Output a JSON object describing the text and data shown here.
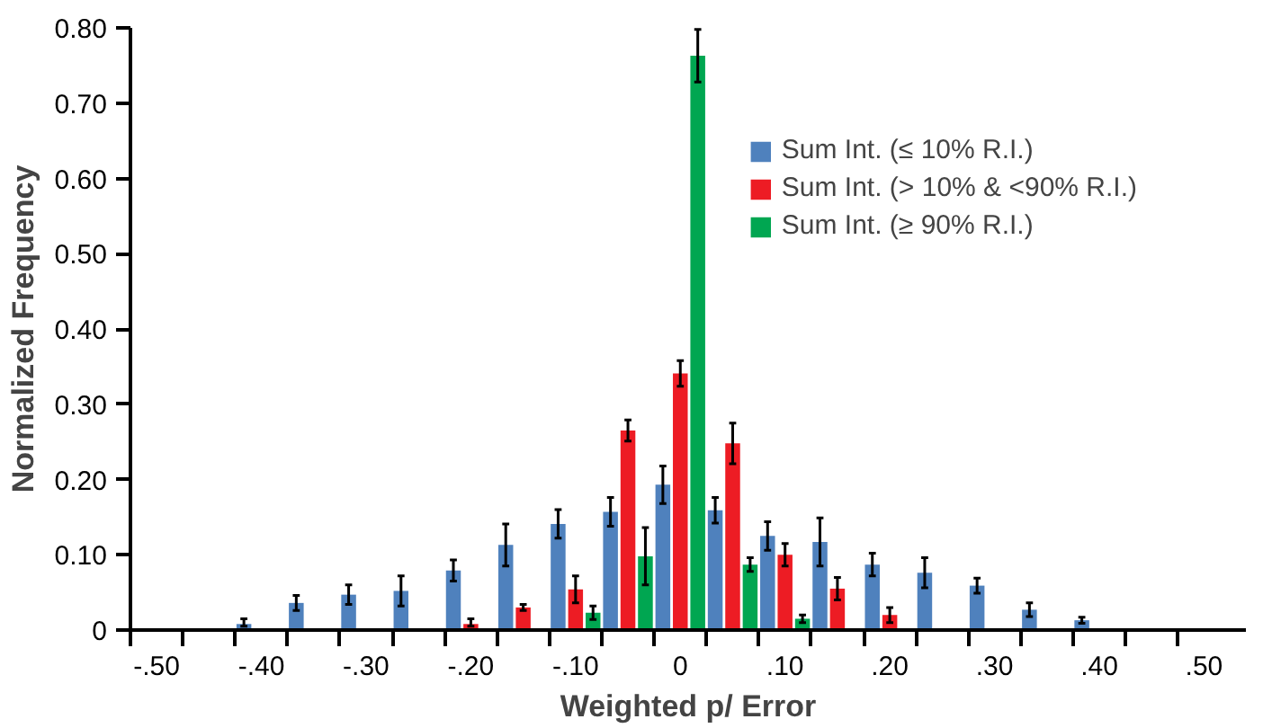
{
  "chart_data": {
    "type": "bar",
    "xlabel": "Weighted p/ Error",
    "ylabel": "Normalized Frequency",
    "xlim": [
      -0.525,
      0.54
    ],
    "ylim": [
      0,
      0.8
    ],
    "xticks": [
      {
        "value": -0.5,
        "label": "-.50"
      },
      {
        "value": -0.4,
        "label": "-.40"
      },
      {
        "value": -0.3,
        "label": "-.30"
      },
      {
        "value": -0.2,
        "label": "-.20"
      },
      {
        "value": -0.1,
        "label": "-.10"
      },
      0,
      {
        "value": 0.1,
        "label": ".10"
      },
      {
        "value": 0.2,
        "label": ".20"
      },
      {
        "value": 0.3,
        "label": ".30"
      },
      {
        "value": 0.4,
        "label": ".40"
      },
      {
        "value": 0.5,
        "label": ".50"
      },
      {
        "value": -0.525,
        "label": null
      },
      {
        "value": -0.475,
        "label": null
      },
      {
        "value": -0.425,
        "label": null
      },
      {
        "value": -0.375,
        "label": null
      },
      {
        "value": -0.325,
        "label": null
      },
      {
        "value": -0.275,
        "label": null
      },
      {
        "value": -0.225,
        "label": null
      },
      {
        "value": -0.175,
        "label": null
      },
      {
        "value": -0.125,
        "label": null
      },
      {
        "value": -0.075,
        "label": null
      },
      {
        "value": -0.025,
        "label": null
      },
      {
        "value": 0.025,
        "label": null
      },
      {
        "value": 0.075,
        "label": null
      },
      {
        "value": 0.125,
        "label": null
      },
      {
        "value": 0.175,
        "label": null
      },
      {
        "value": 0.225,
        "label": null
      },
      {
        "value": 0.275,
        "label": null
      },
      {
        "value": 0.325,
        "label": null
      },
      {
        "value": 0.375,
        "label": null
      },
      {
        "value": 0.425,
        "label": null
      },
      {
        "value": 0.475,
        "label": null
      }
    ],
    "yticks": [
      {
        "value": 0,
        "label": "0"
      },
      {
        "value": 0.1,
        "label": "0.10"
      },
      {
        "value": 0.2,
        "label": "0.20"
      },
      {
        "value": 0.3,
        "label": "0.30"
      },
      {
        "value": 0.4,
        "label": "0.40"
      },
      {
        "value": 0.5,
        "label": "0.50"
      },
      {
        "value": 0.6,
        "label": "0.60"
      },
      {
        "value": 0.7,
        "label": "0.70"
      },
      {
        "value": 0.8,
        "label": "0.80"
      }
    ],
    "grid": false,
    "legend": "top right",
    "series": [
      {
        "name": "Sum Int. (≤ 10% R.I.)",
        "color": "#4f81bd",
        "x": [
          -0.4,
          -0.35,
          -0.3,
          -0.25,
          -0.2,
          -0.15,
          -0.1,
          -0.05,
          0,
          0.05,
          0.1,
          0.15,
          0.2,
          0.25,
          0.3,
          0.35,
          0.4
        ],
        "values": [
          0.008,
          0.036,
          0.047,
          0.052,
          0.079,
          0.113,
          0.141,
          0.157,
          0.193,
          0.159,
          0.125,
          0.117,
          0.087,
          0.076,
          0.059,
          0.027,
          0.013
        ],
        "errors": [
          [
            0.005,
            0.015
          ],
          0.01,
          0.013,
          0.02,
          0.014,
          0.028,
          0.019,
          0.019,
          0.025,
          0.017,
          0.019,
          0.032,
          0.015,
          0.02,
          0.01,
          0.009,
          0.004
        ]
      },
      {
        "name": "Sum Int. (> 10% & <90% R.I.)",
        "color": "#ed1c24",
        "x": [
          -0.2,
          -0.15,
          -0.1,
          -0.05,
          0,
          0.05,
          0.1,
          0.15,
          0.2
        ],
        "values": [
          0.008,
          0.03,
          0.054,
          0.265,
          0.341,
          0.248,
          0.1,
          0.055,
          0.02
        ],
        "errors": [
          [
            0.005,
            0.015
          ],
          0.004,
          0.018,
          0.014,
          0.017,
          0.027,
          0.015,
          0.015,
          0.01
        ]
      },
      {
        "name": "Sum Int. (≥ 90% R.I.)",
        "color": "#00a651",
        "x": [
          -0.1,
          -0.05,
          0,
          0.05,
          0.1
        ],
        "values": [
          0.023,
          0.098,
          0.763,
          0.087,
          0.015
        ],
        "errors": [
          0.009,
          0.038,
          0.035,
          0.009,
          0.005
        ]
      }
    ]
  }
}
